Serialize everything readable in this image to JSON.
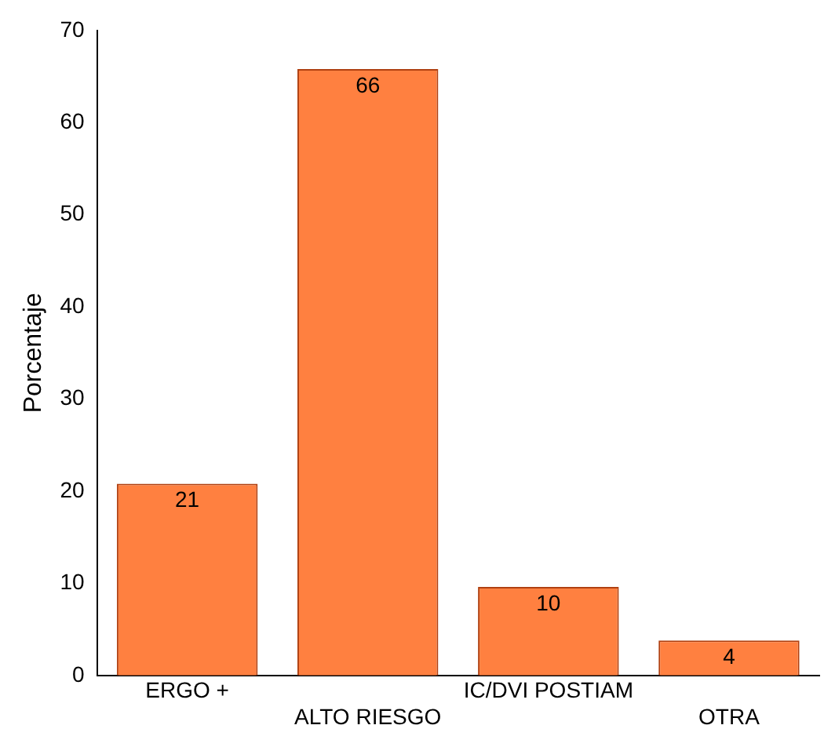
{
  "chart_data": {
    "type": "bar",
    "ylabel": "Porcentaje",
    "categories": [
      "ERGO +",
      "ALTO RIESGO",
      "IC/DVI POSTIAM",
      "OTRA"
    ],
    "values": [
      20.8,
      65.8,
      9.6,
      3.8
    ],
    "value_labels": [
      "21",
      "66",
      "10",
      "4"
    ],
    "color": "#ff8040",
    "ylim": [
      0,
      70
    ],
    "yticks": [
      0,
      10,
      20,
      30,
      40,
      50,
      60,
      70
    ],
    "grid": false,
    "legend": false
  }
}
